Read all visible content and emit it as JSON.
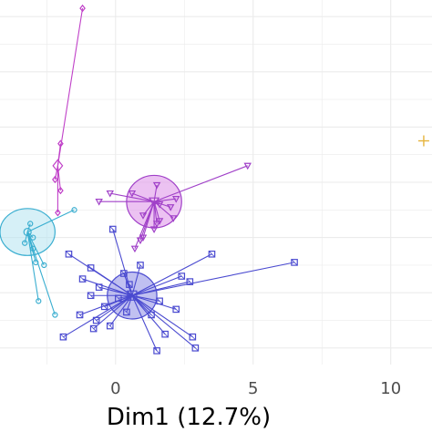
{
  "chart_data": {
    "type": "scatter",
    "title": "",
    "xlabel": "Dim1 (12.7%)",
    "ylabel": "",
    "x_ticks": [
      0,
      5,
      10
    ],
    "x_tick_labels": [
      "0",
      "5",
      "10"
    ],
    "xlim": [
      -4.2,
      11.5
    ],
    "ylim": [
      -4.6,
      8.6
    ],
    "grid": true,
    "legend": "none",
    "colors": {
      "grid": "#ebebeb",
      "panel": "#ffffff"
    },
    "groups": [
      {
        "color": "#c040c8",
        "fill": "#e8a6ee",
        "marker": "diamond",
        "center": [
          -2.1,
          2.6
        ],
        "ellipse": null,
        "points": [
          [
            -1.2,
            8.3
          ],
          [
            -2.0,
            3.4
          ],
          [
            -2.2,
            2.1
          ],
          [
            -2.1,
            0.9
          ],
          [
            -2.0,
            1.7
          ]
        ]
      },
      {
        "color": "#a040c8",
        "fill": "#dc8fe8",
        "marker": "triangle-down",
        "center": [
          1.4,
          1.3
        ],
        "ellipse": {
          "rx": 1.0,
          "ry": 0.95
        },
        "points": [
          [
            4.8,
            2.6
          ],
          [
            -0.2,
            1.6
          ],
          [
            0.6,
            1.6
          ],
          [
            -0.6,
            1.3
          ],
          [
            2.2,
            1.4
          ],
          [
            2.0,
            1.1
          ],
          [
            1.6,
            1.2
          ],
          [
            1.0,
            0.8
          ],
          [
            1.6,
            0.6
          ],
          [
            1.5,
            0.5
          ],
          [
            1.4,
            0.3
          ],
          [
            1.0,
            0.0
          ],
          [
            0.9,
            -0.1
          ],
          [
            0.7,
            -0.4
          ],
          [
            2.1,
            0.7
          ],
          [
            1.5,
            1.9
          ]
        ]
      },
      {
        "color": "#4a4ad0",
        "fill": "#8c8ce6",
        "marker": "square",
        "center": [
          0.6,
          -2.1
        ],
        "ellipse": {
          "rx": 0.9,
          "ry": 0.85
        },
        "points": [
          [
            6.5,
            -0.9
          ],
          [
            3.5,
            -0.6
          ],
          [
            -0.1,
            0.3
          ],
          [
            -1.7,
            -0.6
          ],
          [
            -0.9,
            -1.1
          ],
          [
            -1.2,
            -1.5
          ],
          [
            -0.6,
            -1.8
          ],
          [
            -0.9,
            -2.1
          ],
          [
            -0.4,
            -2.5
          ],
          [
            -0.7,
            -3.0
          ],
          [
            -1.3,
            -2.8
          ],
          [
            -0.2,
            -3.2
          ],
          [
            0.1,
            -2.2
          ],
          [
            0.3,
            -1.3
          ],
          [
            2.4,
            -1.4
          ],
          [
            2.7,
            -1.6
          ],
          [
            1.6,
            -2.3
          ],
          [
            2.2,
            -2.6
          ],
          [
            1.8,
            -3.5
          ],
          [
            2.8,
            -3.6
          ],
          [
            2.9,
            -4.0
          ],
          [
            1.5,
            -4.1
          ],
          [
            0.5,
            -1.7
          ],
          [
            0.4,
            -2.7
          ],
          [
            -1.9,
            -3.6
          ],
          [
            -0.8,
            -3.3
          ],
          [
            0.9,
            -1.0
          ],
          [
            1.3,
            -2.8
          ]
        ]
      },
      {
        "color": "#3aaed0",
        "fill": "#b5e3f1",
        "marker": "circle",
        "center": [
          -3.2,
          0.2
        ],
        "ellipse": {
          "rx": 1.0,
          "ry": 0.85
        },
        "points": [
          [
            -1.5,
            1.0
          ],
          [
            -2.6,
            -1.0
          ],
          [
            -2.2,
            -2.8
          ],
          [
            -2.8,
            -2.3
          ],
          [
            -3.0,
            0.0
          ],
          [
            -3.3,
            -0.2
          ],
          [
            -3.0,
            -0.4
          ],
          [
            -2.9,
            -0.9
          ],
          [
            -3.1,
            0.5
          ]
        ]
      }
    ],
    "extra_points": [
      {
        "marker": "plus",
        "color": "#e6b43c",
        "x": 11.2,
        "y": 3.5
      }
    ]
  }
}
